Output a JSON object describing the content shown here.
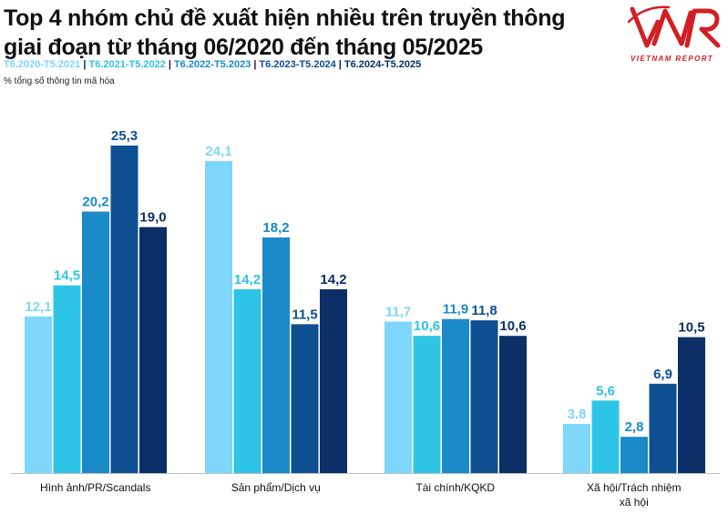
{
  "title_lines": [
    "Top 4 nhóm chủ đề xuất hiện nhiều trên truyền thông",
    "giai đoạn từ tháng 06/2020 đến tháng 05/2025"
  ],
  "unit_note": "% tổng số thông tin mã hóa",
  "logo": {
    "mark": "VNR",
    "subtitle": "VIETNAM REPORT"
  },
  "colors": {
    "brand_red": "#d21f26",
    "series": [
      "#7ed6fb",
      "#2ec4e6",
      "#1a8ac9",
      "#0e4f91",
      "#0b2f66"
    ],
    "value_text": [
      "#7ed6fb",
      "#2ec4e6",
      "#1a8ac9",
      "#0e4f91",
      "#0b2f66"
    ]
  },
  "chart_data": {
    "type": "bar",
    "title": "Top 4 nhóm chủ đề xuất hiện nhiều trên truyền thông giai đoạn từ tháng 06/2020 đến tháng 05/2025",
    "ylabel": "% tổng số thông tin mã hóa",
    "categories": [
      "Hình ảnh/PR/Scandals",
      "Sản phẩm/Dịch vụ",
      "Tài chính/KQKD",
      "Xã hội/Trách nhiệm xã hội"
    ],
    "category_lines": [
      [
        "Hình ảnh/PR/Scandals"
      ],
      [
        "Sản phẩm/Dịch vụ"
      ],
      [
        "Tài chính/KQKD"
      ],
      [
        "Xã hội/Trách nhiệm",
        "xã hội"
      ]
    ],
    "series": [
      {
        "name": "T6.2020-T5.2021",
        "values": [
          12.1,
          24.1,
          11.7,
          3.8
        ],
        "labels": [
          "12,1",
          "24,1",
          "11,7",
          "3.8"
        ]
      },
      {
        "name": "T6.2021-T5.2022",
        "values": [
          14.5,
          14.2,
          10.6,
          5.6
        ],
        "labels": [
          "14,5",
          "14,2",
          "10,6",
          "5,6"
        ]
      },
      {
        "name": "T6.2022-T5.2023",
        "values": [
          20.2,
          18.2,
          11.9,
          2.8
        ],
        "labels": [
          "20,2",
          "18,2",
          "11,9",
          "2,8"
        ]
      },
      {
        "name": "T6.2023-T5.2024",
        "values": [
          25.3,
          11.5,
          11.8,
          6.9
        ],
        "labels": [
          "25,3",
          "11,5",
          "11,8",
          "6,9"
        ]
      },
      {
        "name": "T6.2024-T5.2025",
        "values": [
          19.0,
          14.2,
          10.6,
          10.5
        ],
        "labels": [
          "19,0",
          "14,2",
          "10,6",
          "10,5"
        ]
      }
    ],
    "ylim": [
      0,
      25.3
    ],
    "grid": false,
    "legend_position": "top-left"
  }
}
